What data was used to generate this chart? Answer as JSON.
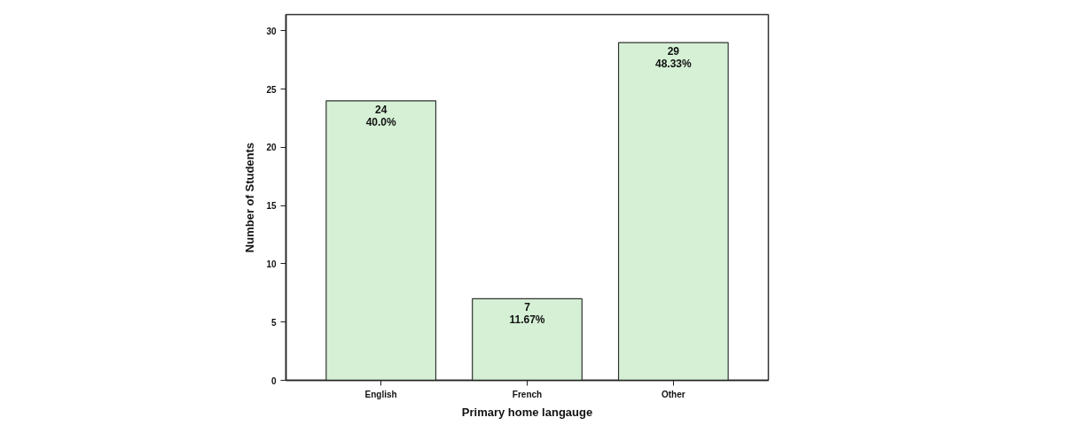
{
  "chart_data": {
    "type": "bar",
    "xlabel": "Primary home langauge",
    "ylabel": "Number of Students",
    "categories": [
      "English",
      "French",
      "Other"
    ],
    "values": [
      24,
      7,
      29
    ],
    "color": "#d5f0d5",
    "value_labels": [
      "24\n40.0%",
      "7\n11.67%",
      "29\n48.33%"
    ],
    "ylim": [
      0,
      31.4
    ],
    "yticks": [
      0,
      5,
      10,
      15,
      20,
      25,
      30
    ]
  }
}
